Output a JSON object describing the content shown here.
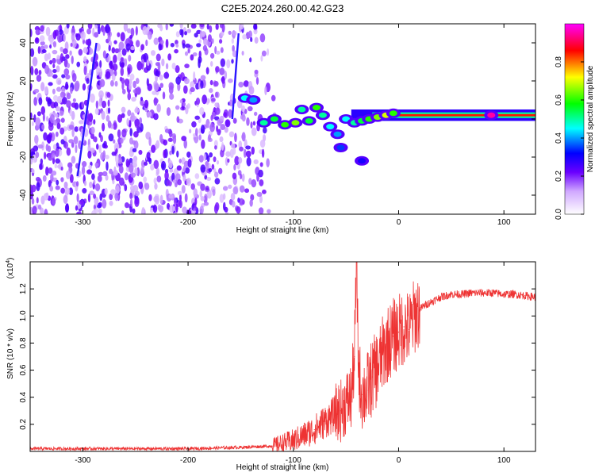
{
  "title": "C2E5.2024.260.00.42.G23",
  "chart_data": [
    {
      "type": "heatmap",
      "xlabel": "Height of straight line (km)",
      "ylabel": "Frequency (Hz)",
      "xlim": [
        -350,
        130
      ],
      "ylim": [
        -50,
        50
      ],
      "xticks": [
        -300,
        -200,
        -100,
        0,
        100
      ],
      "yticks": [
        -40,
        -20,
        0,
        20,
        40
      ],
      "colorbar": {
        "label": "Normalized spectral amplitude",
        "range": [
          0,
          1
        ],
        "ticks": [
          "0.0",
          "0.2",
          "0.4",
          "0.6",
          "0.8"
        ],
        "tick_values": [
          0,
          0.2,
          0.4,
          0.6,
          0.8
        ],
        "colormap": [
          "#ffffff",
          "#6a00ff",
          "#0000ff",
          "#00ffff",
          "#00ff00",
          "#ffff00",
          "#ff0000",
          "#ff00ff"
        ]
      },
      "features": {
        "carrier_line": {
          "x_start": -45,
          "x_end": 130,
          "frequency": 2,
          "amplitude": 0.85
        },
        "noise_region": {
          "x_start": -350,
          "x_end": -120,
          "amplitude": 0.25
        },
        "streaks": [
          {
            "x_start": -305,
            "f_start": -30,
            "x_end": -287,
            "f_end": 40
          },
          {
            "x_start": -158,
            "f_start": 0,
            "x_end": -152,
            "f_end": 45
          }
        ],
        "blobs": [
          {
            "x": -146,
            "f": 11,
            "v": 0.45
          },
          {
            "x": -138,
            "f": 10,
            "v": 0.4
          },
          {
            "x": -128,
            "f": -2,
            "v": 0.5
          },
          {
            "x": -118,
            "f": 0,
            "v": 0.55
          },
          {
            "x": -108,
            "f": -3,
            "v": 0.6
          },
          {
            "x": -98,
            "f": -2,
            "v": 0.65
          },
          {
            "x": -92,
            "f": 5,
            "v": 0.5
          },
          {
            "x": -85,
            "f": -1,
            "v": 0.55
          },
          {
            "x": -78,
            "f": 6,
            "v": 0.6
          },
          {
            "x": -72,
            "f": 2,
            "v": 0.5
          },
          {
            "x": -65,
            "f": -4,
            "v": 0.45
          },
          {
            "x": -58,
            "f": -8,
            "v": 0.4
          },
          {
            "x": -55,
            "f": -15,
            "v": 0.35
          },
          {
            "x": -50,
            "f": 0,
            "v": 0.45
          },
          {
            "x": -42,
            "f": -2,
            "v": 0.5
          },
          {
            "x": -35,
            "f": -1,
            "v": 0.55
          },
          {
            "x": -28,
            "f": 0,
            "v": 0.6
          },
          {
            "x": -20,
            "f": 1,
            "v": 0.65
          },
          {
            "x": -12,
            "f": 2,
            "v": 0.7
          },
          {
            "x": -5,
            "f": 3,
            "v": 0.6
          },
          {
            "x": -35,
            "f": -22,
            "v": 0.3
          },
          {
            "x": 88,
            "f": 2,
            "v": 0.95
          }
        ]
      }
    },
    {
      "type": "line",
      "xlabel": "Height of straight line (km)",
      "ylabel": "SNR (10 * v/v)",
      "y_multiplier": "(x10",
      "y_multiplier_exponent": "4",
      "y_multiplier_suffix": ")",
      "xlim": [
        -350,
        130
      ],
      "ylim": [
        0,
        1.4
      ],
      "xticks": [
        -300,
        -200,
        -100,
        0,
        100
      ],
      "yticks": [
        0.2,
        0.4,
        0.6,
        0.8,
        1.0,
        1.2
      ],
      "ytick_labels": [
        "0.2",
        "0.4",
        "0.6",
        "0.8",
        "1.0",
        "1.2"
      ],
      "color": "#ee3333",
      "series": [
        {
          "x": [
            -350,
            -300,
            -250,
            -200,
            -150,
            -120,
            -100,
            -90,
            -80,
            -70,
            -60,
            -55,
            -50,
            -45,
            -42,
            -40,
            -38,
            -35,
            -30,
            -25,
            -20,
            -15,
            -10,
            -5,
            0,
            5,
            10,
            15,
            20,
            25,
            30,
            40,
            50,
            60,
            70,
            80,
            90,
            100,
            110,
            120,
            130
          ],
          "values": [
            0.02,
            0.02,
            0.02,
            0.02,
            0.03,
            0.04,
            0.08,
            0.12,
            0.16,
            0.22,
            0.28,
            0.3,
            0.36,
            0.4,
            0.7,
            1.4,
            0.6,
            0.42,
            0.45,
            0.55,
            0.62,
            0.72,
            0.8,
            0.85,
            0.88,
            0.92,
            0.9,
            1.0,
            1.05,
            1.08,
            1.1,
            1.14,
            1.16,
            1.16,
            1.17,
            1.17,
            1.17,
            1.16,
            1.16,
            1.15,
            1.14
          ]
        }
      ]
    }
  ]
}
